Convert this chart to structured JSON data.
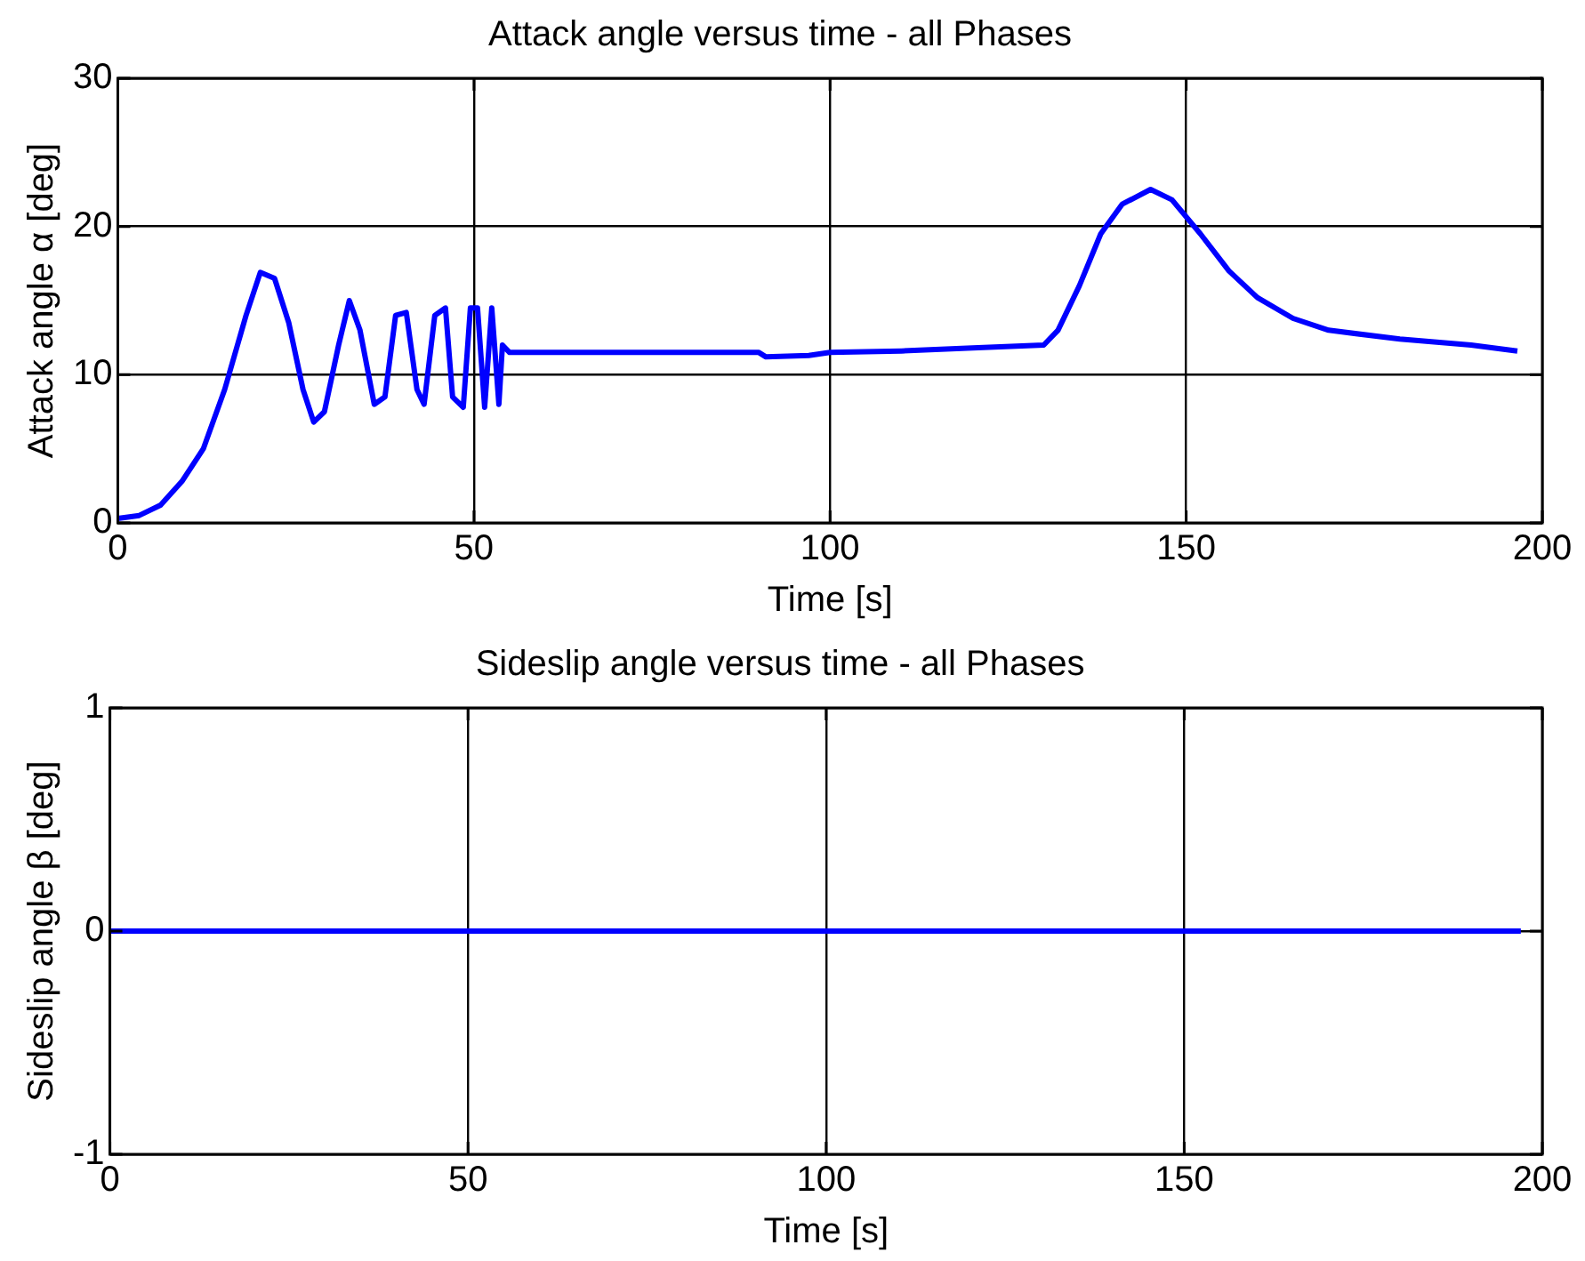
{
  "chart_data": [
    {
      "type": "line",
      "title": "Attack angle versus time - all Phases",
      "xlabel": "Time [s]",
      "ylabel": "Attack angle α [deg]",
      "x": [
        0,
        3,
        6,
        9,
        12,
        15,
        18,
        20,
        22,
        24,
        26,
        27.5,
        29,
        31,
        32.5,
        34,
        36,
        37.5,
        39,
        40.5,
        42,
        43,
        44.5,
        46,
        47,
        48.5,
        49.5,
        50.5,
        51.5,
        52.5,
        53.5,
        54,
        55,
        90,
        91,
        97,
        100,
        110,
        120,
        130,
        132,
        135,
        138,
        141,
        145,
        148,
        152,
        156,
        160,
        165,
        170,
        180,
        190,
        196.5
      ],
      "values": [
        0.3,
        0.5,
        1.2,
        2.8,
        5,
        9,
        14,
        16.9,
        16.5,
        13.5,
        9,
        6.8,
        7.5,
        12,
        15,
        13,
        8,
        8.5,
        14,
        14.2,
        9,
        8,
        14,
        14.5,
        8.5,
        7.8,
        14.5,
        14.5,
        7.8,
        14.5,
        8,
        12,
        11.5,
        11.5,
        11.2,
        11.3,
        11.5,
        11.6,
        11.8,
        12,
        13,
        16,
        19.5,
        21.5,
        22.5,
        21.8,
        19.5,
        17,
        15.2,
        13.8,
        13,
        12.4,
        12,
        11.6
      ],
      "color": "#0000ff",
      "xlim": [
        0,
        200
      ],
      "xticks": [
        0,
        50,
        100,
        150,
        200
      ],
      "ylim": [
        0,
        30
      ],
      "yticks": [
        0,
        10,
        20,
        30
      ],
      "grid": true
    },
    {
      "type": "line",
      "title": "Sideslip angle versus time - all Phases",
      "xlabel": "Time [s]",
      "ylabel": "Sideslip angle β [deg]",
      "x": [
        0,
        197
      ],
      "values": [
        0,
        0
      ],
      "color": "#0000ff",
      "xlim": [
        0,
        200
      ],
      "xticks": [
        0,
        50,
        100,
        150,
        200
      ],
      "ylim": [
        -1,
        1
      ],
      "yticks": [
        -1,
        0,
        1
      ],
      "grid": true
    }
  ]
}
